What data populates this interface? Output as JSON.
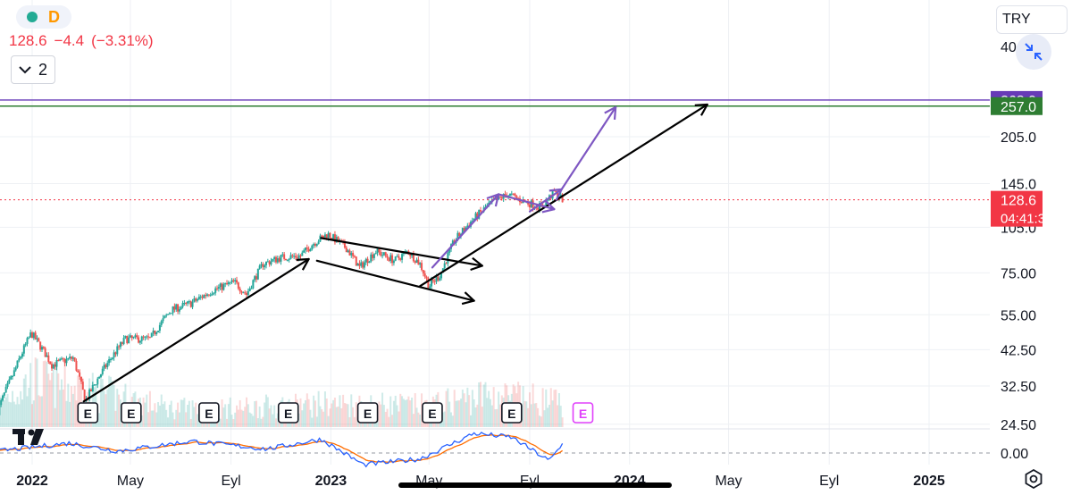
{
  "header": {
    "interval": "D",
    "last_price": "128.6",
    "change": "−4.4",
    "change_pct": "(−3.31%)",
    "indicator_count": "2",
    "currency": "TRY"
  },
  "colors": {
    "up": "#26a69a",
    "down": "#ef5350",
    "last_price": "#f23645",
    "purple_level": "#673ab7",
    "green_level": "#2e7d32",
    "macd_line": "#2962ff",
    "signal_line": "#ff6d00",
    "arrow_black": "#000000",
    "arrow_purple": "#7e57c2"
  },
  "price_axis": {
    "ticks": [
      {
        "label": "205.0",
        "value": 205
      },
      {
        "label": "145.0",
        "value": 145
      },
      {
        "label": "105.0",
        "value": 105
      },
      {
        "label": "75.00",
        "value": 75
      },
      {
        "label": "55.00",
        "value": 55
      },
      {
        "label": "42.50",
        "value": 42.5
      },
      {
        "label": "32.50",
        "value": 32.5
      },
      {
        "label": "24.50",
        "value": 24.5
      }
    ],
    "clipped_top_label": "40",
    "macd_zero_label": "0.00"
  },
  "price_labels": [
    {
      "id": "purple",
      "text": "268.9",
      "value": 268.9
    },
    {
      "id": "green",
      "text": "257.0",
      "value": 257.0
    },
    {
      "id": "last",
      "text": "128.6",
      "value": 128.6,
      "countdown": "04:41:30"
    }
  ],
  "time_axis": [
    {
      "label": "2022",
      "date": "2022-01-01",
      "bold": true
    },
    {
      "label": "May",
      "date": "2022-05-01",
      "bold": false
    },
    {
      "label": "Eyl",
      "date": "2022-09-01",
      "bold": false
    },
    {
      "label": "2023",
      "date": "2023-01-01",
      "bold": true
    },
    {
      "label": "May",
      "date": "2023-05-01",
      "bold": false
    },
    {
      "label": "Eyl",
      "date": "2023-09-01",
      "bold": false
    },
    {
      "label": "2024",
      "date": "2024-01-01",
      "bold": true
    },
    {
      "label": "May",
      "date": "2024-05-01",
      "bold": false
    },
    {
      "label": "Eyl",
      "date": "2024-09-01",
      "bold": false
    },
    {
      "label": "2025",
      "date": "2025-01-01",
      "bold": true
    }
  ],
  "chart_data": {
    "type": "candlestick",
    "scale": "log",
    "x_range": [
      "2021-11-15",
      "2025-03-15"
    ],
    "ylim": [
      22,
      420
    ],
    "price_path": [
      {
        "date": "2021-11-20",
        "price": 27
      },
      {
        "date": "2021-12-10",
        "price": 36
      },
      {
        "date": "2021-12-31",
        "price": 48
      },
      {
        "date": "2022-01-25",
        "price": 38
      },
      {
        "date": "2022-02-20",
        "price": 40
      },
      {
        "date": "2022-03-07",
        "price": 29
      },
      {
        "date": "2022-03-30",
        "price": 37
      },
      {
        "date": "2022-04-25",
        "price": 46
      },
      {
        "date": "2022-05-25",
        "price": 46
      },
      {
        "date": "2022-06-20",
        "price": 57
      },
      {
        "date": "2022-07-15",
        "price": 60
      },
      {
        "date": "2022-08-10",
        "price": 66
      },
      {
        "date": "2022-09-05",
        "price": 70
      },
      {
        "date": "2022-09-20",
        "price": 64
      },
      {
        "date": "2022-10-10",
        "price": 80
      },
      {
        "date": "2022-11-01",
        "price": 84
      },
      {
        "date": "2022-11-25",
        "price": 85
      },
      {
        "date": "2022-12-10",
        "price": 93
      },
      {
        "date": "2022-12-28",
        "price": 100
      },
      {
        "date": "2023-01-20",
        "price": 90
      },
      {
        "date": "2023-02-05",
        "price": 78
      },
      {
        "date": "2023-02-25",
        "price": 88
      },
      {
        "date": "2023-03-20",
        "price": 82
      },
      {
        "date": "2023-04-05",
        "price": 88
      },
      {
        "date": "2023-04-20",
        "price": 80
      },
      {
        "date": "2023-05-01",
        "price": 68
      },
      {
        "date": "2023-05-15",
        "price": 74
      },
      {
        "date": "2023-06-01",
        "price": 95
      },
      {
        "date": "2023-06-25",
        "price": 112
      },
      {
        "date": "2023-07-15",
        "price": 125
      },
      {
        "date": "2023-08-05",
        "price": 134
      },
      {
        "date": "2023-08-25",
        "price": 127
      },
      {
        "date": "2023-09-15",
        "price": 122
      },
      {
        "date": "2023-10-01",
        "price": 136
      },
      {
        "date": "2023-10-12",
        "price": 128.6
      }
    ],
    "volume_path": [
      {
        "date": "2021-11-20",
        "level": 0.5
      },
      {
        "date": "2021-12-31",
        "level": 1.0
      },
      {
        "date": "2022-03-07",
        "level": 0.8
      },
      {
        "date": "2022-06-20",
        "level": 0.4
      },
      {
        "date": "2022-09-05",
        "level": 0.4
      },
      {
        "date": "2022-12-28",
        "level": 0.5
      },
      {
        "date": "2023-05-01",
        "level": 0.45
      },
      {
        "date": "2023-07-15",
        "level": 0.7
      },
      {
        "date": "2023-10-12",
        "level": 0.5
      }
    ],
    "earnings_markers": [
      {
        "label": "E",
        "date": "2022-03-10",
        "upcoming": false
      },
      {
        "label": "E",
        "date": "2022-05-02",
        "upcoming": false
      },
      {
        "label": "E",
        "date": "2022-08-05",
        "upcoming": false
      },
      {
        "label": "E",
        "date": "2022-11-10",
        "upcoming": false
      },
      {
        "label": "E",
        "date": "2023-02-15",
        "upcoming": false
      },
      {
        "label": "E",
        "date": "2023-05-05",
        "upcoming": false
      },
      {
        "label": "E",
        "date": "2023-08-10",
        "upcoming": false
      },
      {
        "label": "E",
        "date": "2023-11-05",
        "upcoming": true
      }
    ],
    "horizontal_levels": [
      {
        "value": 268.9,
        "color": "purple_level"
      },
      {
        "value": 257.0,
        "color": "green_level"
      },
      {
        "value": 128.6,
        "color": "last_price",
        "dotted": true
      }
    ],
    "drawn_arrows": [
      {
        "color": "arrow_black",
        "from": {
          "date": "2022-03-05",
          "price": 29
        },
        "to": {
          "date": "2022-12-05",
          "price": 83
        }
      },
      {
        "color": "arrow_black",
        "from": {
          "date": "2022-12-15",
          "price": 82
        },
        "to": {
          "date": "2023-06-25",
          "price": 61
        }
      },
      {
        "color": "arrow_black",
        "from": {
          "date": "2022-12-20",
          "price": 97
        },
        "to": {
          "date": "2023-07-05",
          "price": 79
        }
      },
      {
        "color": "arrow_black",
        "from": {
          "date": "2023-04-20",
          "price": 68
        },
        "to": {
          "date": "2024-04-05",
          "price": 260
        }
      },
      {
        "color": "arrow_purple",
        "from": {
          "date": "2023-05-05",
          "price": 78
        },
        "to": {
          "date": "2023-07-25",
          "price": 134
        }
      },
      {
        "color": "arrow_purple",
        "from": {
          "date": "2023-07-25",
          "price": 134
        },
        "to": {
          "date": "2023-10-01",
          "price": 120
        }
      },
      {
        "color": "arrow_purple",
        "from": {
          "date": "2023-09-01",
          "price": 118
        },
        "to": {
          "date": "2023-10-10",
          "price": 139
        }
      },
      {
        "color": "arrow_purple",
        "from": {
          "date": "2023-10-10",
          "price": 139
        },
        "to": {
          "date": "2023-12-15",
          "price": 255
        }
      }
    ],
    "macd": {
      "zero": 0.0,
      "macd_path": [
        {
          "date": "2021-11-20",
          "value": 0.1
        },
        {
          "date": "2022-02-15",
          "value": 0.5
        },
        {
          "date": "2022-04-15",
          "value": 0.1
        },
        {
          "date": "2022-07-15",
          "value": 0.6
        },
        {
          "date": "2022-10-15",
          "value": 0.2
        },
        {
          "date": "2022-12-20",
          "value": 0.7
        },
        {
          "date": "2023-02-10",
          "value": -0.6
        },
        {
          "date": "2023-04-20",
          "value": -0.3
        },
        {
          "date": "2023-06-25",
          "value": 1.0
        },
        {
          "date": "2023-08-10",
          "value": 0.8
        },
        {
          "date": "2023-09-25",
          "value": -0.4
        },
        {
          "date": "2023-10-12",
          "value": 0.5
        }
      ]
    }
  }
}
